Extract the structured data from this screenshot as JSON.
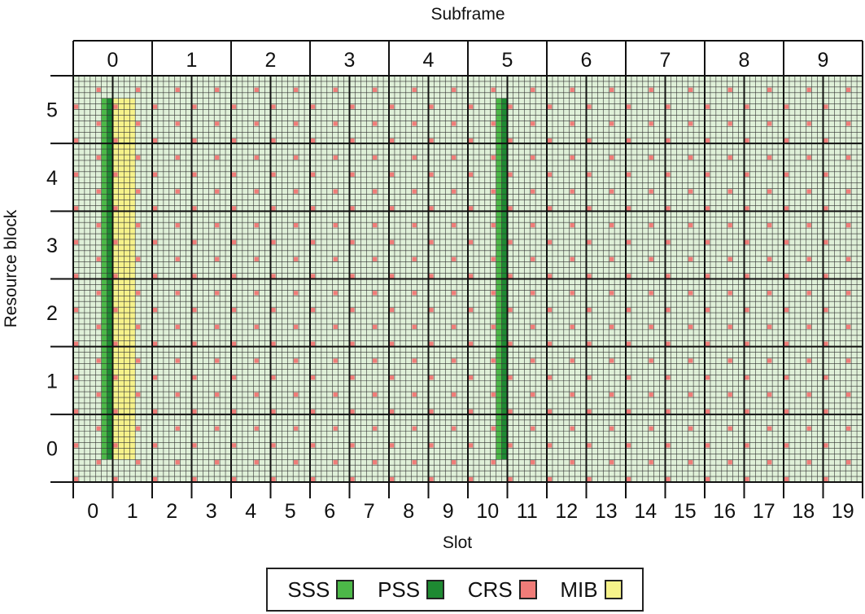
{
  "top_axis_label": "Subframe",
  "bottom_axis_label": "Slot",
  "left_axis_label": "Resource block",
  "grid": {
    "subframes": [
      "0",
      "1",
      "2",
      "3",
      "4",
      "5",
      "6",
      "7",
      "8",
      "9"
    ],
    "slots": [
      "0",
      "1",
      "2",
      "3",
      "4",
      "5",
      "6",
      "7",
      "8",
      "9",
      "10",
      "11",
      "12",
      "13",
      "14",
      "15",
      "16",
      "17",
      "18",
      "19"
    ],
    "resource_blocks": [
      "5",
      "4",
      "3",
      "2",
      "1",
      "0"
    ],
    "symbols_per_slot": 7,
    "subcarriers_per_rb": 12
  },
  "colors": {
    "background": "#dff0d8",
    "SSS": "#4cb848",
    "PSS": "#1e8a32",
    "CRS": "#f07c78",
    "MIB": "#f6f28a"
  },
  "legend": [
    {
      "label": "SSS",
      "color": "#4cb848"
    },
    {
      "label": "PSS",
      "color": "#1e8a32"
    },
    {
      "label": "CRS",
      "color": "#f07c78"
    },
    {
      "label": "MIB",
      "color": "#f6f28a"
    }
  ]
}
